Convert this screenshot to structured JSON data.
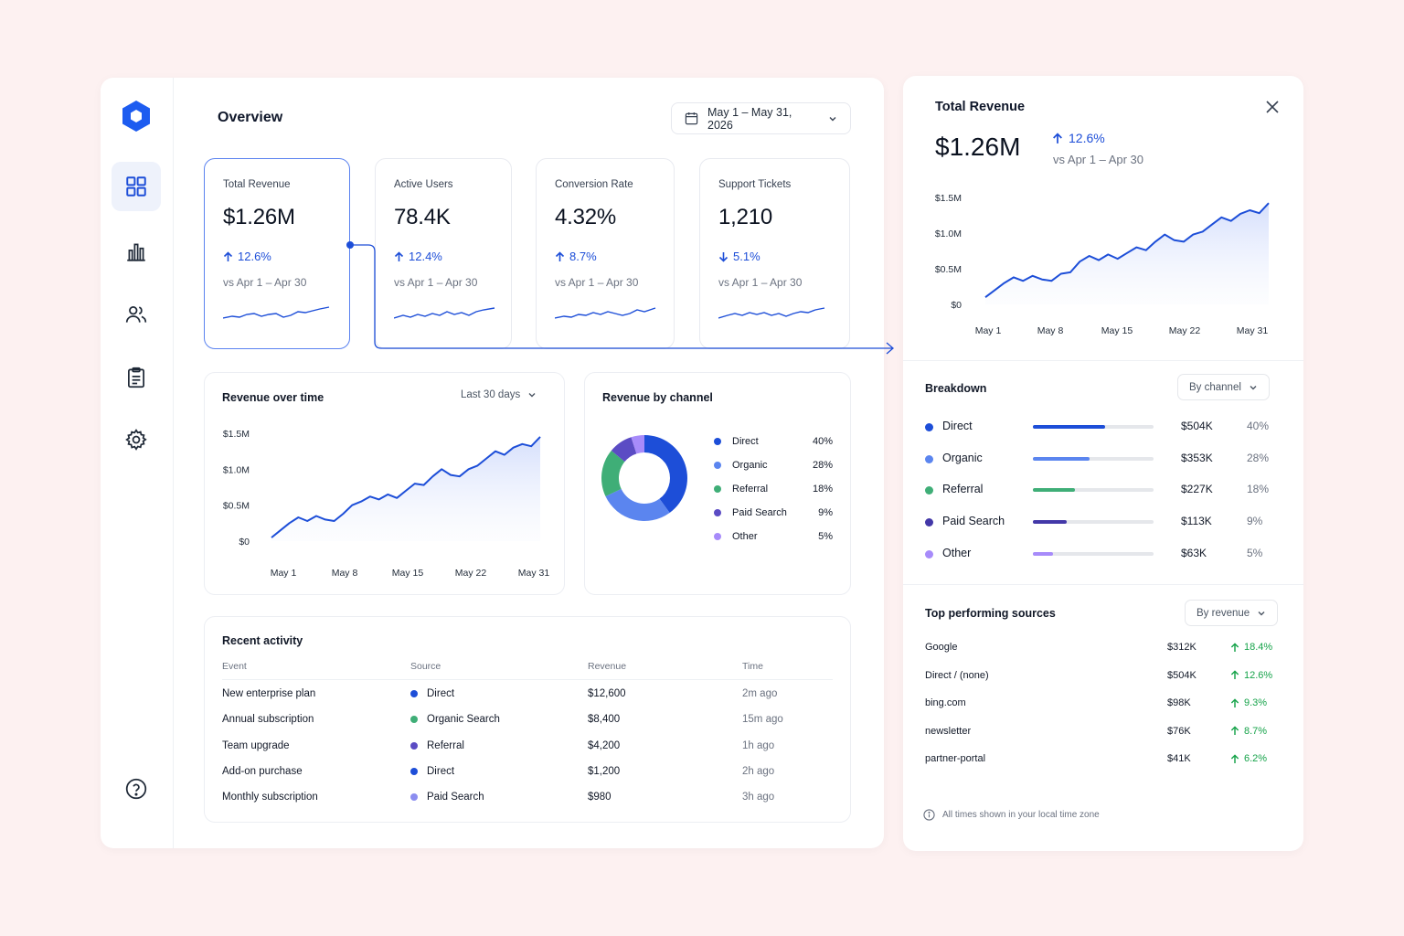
{
  "sidebar": {
    "nav": [
      "grid-icon",
      "bar-chart-icon",
      "users-icon",
      "clipboard-icon",
      "gear-icon"
    ],
    "help": "help-icon"
  },
  "header": {
    "title": "Overview",
    "date_range": "May 1 – May 31, 2026"
  },
  "kpis": [
    {
      "label": "Total Revenue",
      "value": "$1.26M",
      "delta": "12.6%",
      "direction": "up",
      "compare": "vs Apr 1 – Apr 30"
    },
    {
      "label": "Active Users",
      "value": "78.4K",
      "delta": "12.4%",
      "direction": "up",
      "compare": "vs Apr 1 – Apr 30"
    },
    {
      "label": "Conversion Rate",
      "value": "4.32%",
      "delta": "8.7%",
      "direction": "up",
      "compare": "vs Apr 1 – Apr 30"
    },
    {
      "label": "Support Tickets",
      "value": "1,210",
      "delta": "5.1%",
      "direction": "down",
      "compare": "vs Apr 1 – Apr 30"
    }
  ],
  "revenue_over_time": {
    "title": "Revenue over time",
    "range": "Last 30 days"
  },
  "revenue_by_channel": {
    "title": "Revenue by channel",
    "channels": [
      {
        "name": "Direct",
        "pct": "40%",
        "value": 40,
        "color": "#1d4ed8"
      },
      {
        "name": "Organic",
        "pct": "28%",
        "value": 28,
        "color": "#5b85ef"
      },
      {
        "name": "Referral",
        "pct": "18%",
        "value": 18,
        "color": "#3fae77"
      },
      {
        "name": "Paid Search",
        "pct": "9%",
        "value": 9,
        "color": "#5b4cc4"
      },
      {
        "name": "Other",
        "pct": "5%",
        "value": 5,
        "color": "#a78bfa"
      }
    ]
  },
  "recent_activity": {
    "title": "Recent activity",
    "columns": [
      "Event",
      "Source",
      "Revenue",
      "Time"
    ],
    "rows": [
      {
        "event": "New enterprise plan",
        "source": "Direct",
        "source_color": "#1d4ed8",
        "revenue": "$12,600",
        "time": "2m ago"
      },
      {
        "event": "Annual subscription",
        "source": "Organic Search",
        "source_color": "#3fae77",
        "revenue": "$8,400",
        "time": "15m ago"
      },
      {
        "event": "Team upgrade",
        "source": "Referral",
        "source_color": "#5b4cc4",
        "revenue": "$4,200",
        "time": "1h ago"
      },
      {
        "event": "Add-on purchase",
        "source": "Direct",
        "source_color": "#1d4ed8",
        "revenue": "$1,200",
        "time": "2h ago"
      },
      {
        "event": "Monthly subscription",
        "source": "Paid Search",
        "source_color": "#8b8df0",
        "revenue": "$980",
        "time": "3h ago"
      }
    ]
  },
  "detail": {
    "title": "Total Revenue",
    "value": "$1.26M",
    "delta": "12.6%",
    "compare": "vs Apr 1 – Apr 30",
    "breakdown": {
      "title": "Breakdown",
      "filter": "By channel",
      "rows": [
        {
          "name": "Direct",
          "amount": "$504K",
          "pct": "40%",
          "share": 0.6,
          "color": "#1d4ed8"
        },
        {
          "name": "Organic",
          "amount": "$353K",
          "pct": "28%",
          "share": 0.47,
          "color": "#5b85ef"
        },
        {
          "name": "Referral",
          "amount": "$227K",
          "pct": "18%",
          "share": 0.35,
          "color": "#3fae77"
        },
        {
          "name": "Paid Search",
          "amount": "$113K",
          "pct": "9%",
          "share": 0.28,
          "color": "#4338a8"
        },
        {
          "name": "Other",
          "amount": "$63K",
          "pct": "5%",
          "share": 0.17,
          "color": "#a78bfa"
        }
      ]
    },
    "top_sources": {
      "title": "Top performing sources",
      "filter": "By revenue",
      "rows": [
        {
          "name": "Google",
          "amount": "$312K",
          "delta": "18.4%"
        },
        {
          "name": "Direct / (none)",
          "amount": "$504K",
          "delta": "12.6%"
        },
        {
          "name": "bing.com",
          "amount": "$98K",
          "delta": "9.3%"
        },
        {
          "name": "newsletter",
          "amount": "$76K",
          "delta": "8.7%"
        },
        {
          "name": "partner-portal",
          "amount": "$41K",
          "delta": "6.2%"
        }
      ]
    },
    "footnote": "All times shown in your local time zone"
  },
  "chart_data": [
    {
      "type": "area",
      "title": "Revenue over time",
      "xlabel": "",
      "ylabel": "",
      "x_ticks": [
        "May 1",
        "May 8",
        "May 15",
        "May 22",
        "May 31"
      ],
      "y_ticks": [
        "$0",
        "$0.5M",
        "$1.0M",
        "$1.5M"
      ],
      "ylim": [
        0,
        1.5
      ],
      "x": [
        1,
        2,
        3,
        4,
        5,
        6,
        7,
        8,
        9,
        10,
        11,
        12,
        13,
        14,
        15,
        16,
        17,
        18,
        19,
        20,
        21,
        22,
        23,
        24,
        25,
        26,
        27,
        28,
        29,
        30,
        31
      ],
      "values": [
        0.05,
        0.15,
        0.25,
        0.33,
        0.28,
        0.35,
        0.3,
        0.28,
        0.38,
        0.5,
        0.55,
        0.62,
        0.58,
        0.65,
        0.6,
        0.7,
        0.8,
        0.78,
        0.9,
        1.0,
        0.92,
        0.9,
        1.0,
        1.05,
        1.15,
        1.25,
        1.2,
        1.3,
        1.35,
        1.32,
        1.45
      ]
    },
    {
      "type": "pie",
      "title": "Revenue by channel",
      "categories": [
        "Direct",
        "Organic",
        "Referral",
        "Paid Search",
        "Other"
      ],
      "values": [
        40,
        28,
        18,
        9,
        5
      ]
    },
    {
      "type": "area",
      "title": "Total Revenue",
      "xlabel": "",
      "ylabel": "",
      "x_ticks": [
        "May 1",
        "May 8",
        "May 15",
        "May 22",
        "May 31"
      ],
      "y_ticks": [
        "$0",
        "$0.5M",
        "$1.0M",
        "$1.5M"
      ],
      "ylim": [
        0,
        1.5
      ],
      "x": [
        1,
        2,
        3,
        4,
        5,
        6,
        7,
        8,
        9,
        10,
        11,
        12,
        13,
        14,
        15,
        16,
        17,
        18,
        19,
        20,
        21,
        22,
        23,
        24,
        25,
        26,
        27,
        28,
        29,
        30,
        31
      ],
      "values": [
        0.1,
        0.2,
        0.3,
        0.38,
        0.33,
        0.4,
        0.35,
        0.33,
        0.43,
        0.45,
        0.6,
        0.68,
        0.62,
        0.7,
        0.64,
        0.72,
        0.8,
        0.76,
        0.88,
        0.98,
        0.9,
        0.88,
        0.98,
        1.02,
        1.12,
        1.22,
        1.17,
        1.27,
        1.32,
        1.28,
        1.42
      ]
    }
  ]
}
